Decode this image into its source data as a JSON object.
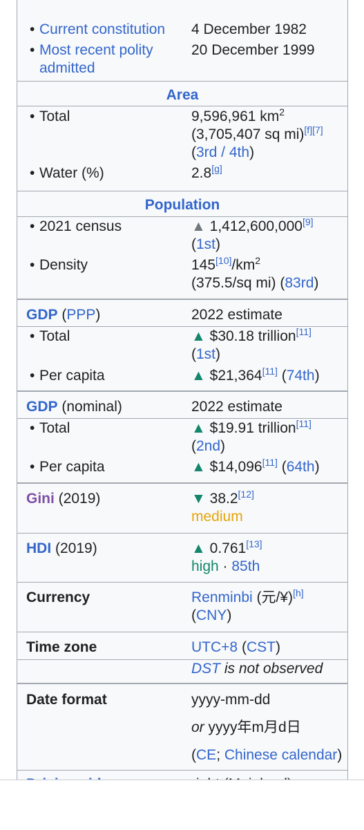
{
  "top": {
    "cut_label": "Current constitution",
    "cut_value": "4 December 1982",
    "polity_label": "Most recent polity admitted",
    "polity_value": "20 December 1999"
  },
  "area": {
    "header": "Area",
    "total_label": "Total",
    "total_value": "9,596,961 km",
    "total_sup": "2",
    "total_sqmi": "(3,705,407 sq mi)",
    "total_refs": "[f][7]",
    "rank_open": "(",
    "rank": "3rd / 4th",
    "rank_close": ")",
    "water_label": "Water (%)",
    "water_value": "2.8",
    "water_ref": "[g]"
  },
  "population": {
    "header": "Population",
    "census_label": "2021 census",
    "census_value": "1,412,600,000",
    "census_ref": "[9]",
    "census_rank_open": "(",
    "census_rank": "1st",
    "census_rank_close": ")",
    "density_label": "Density",
    "density_value": "145",
    "density_ref": "[10]",
    "density_unit": "/km",
    "density_sup": "2",
    "density_sqmi": "(375.5/sq mi) (",
    "density_rank": "83rd",
    "density_close": ")"
  },
  "gdp_ppp": {
    "label_gdp": "GDP",
    "label_open": " (",
    "label_ppp": "PPP",
    "label_close": ")",
    "estimate": "2022 estimate",
    "total_label": "Total",
    "total_value": "$30.18 trillion",
    "total_ref": "[11]",
    "total_rank_open": "(",
    "total_rank": "1st",
    "total_rank_close": ")",
    "pc_label": "Per capita",
    "pc_value": "$21,364",
    "pc_ref": "[11]",
    "pc_open": " (",
    "pc_rank": "74th",
    "pc_close": ")"
  },
  "gdp_nominal": {
    "label_gdp": "GDP",
    "label_rest": " (nominal)",
    "estimate": "2022 estimate",
    "total_label": "Total",
    "total_value": "$19.91 trillion",
    "total_ref": "[11]",
    "total_rank_open": "(",
    "total_rank": "2nd",
    "total_rank_close": ")",
    "pc_label": "Per capita",
    "pc_value": "$14,096",
    "pc_ref": "[11]",
    "pc_open": " (",
    "pc_rank": "64th",
    "pc_close": ")"
  },
  "gini": {
    "label": "Gini",
    "year": " (2019)",
    "value": "38.2",
    "ref": "[12]",
    "rating": "medium"
  },
  "hdi": {
    "label": "HDI",
    "year": " (2019)",
    "value": "0.761",
    "ref": "[13]",
    "rating": "high",
    "dot": " · ",
    "rank": "85th"
  },
  "currency": {
    "label": "Currency",
    "name": "Renminbi",
    "symbol": " (元/¥)",
    "ref": "[h]",
    "code_open": "(",
    "code": "CNY",
    "code_close": ")"
  },
  "timezone": {
    "label": "Time zone",
    "utc": "UTC+8",
    "open": " (",
    "cst": "CST",
    "close": ")",
    "dst": "DST",
    "dst_rest": " is not observed"
  },
  "date_format": {
    "label": "Date format",
    "line1": "yyyy-mm-dd",
    "or": "or",
    "line2": " yyyy年m月d日",
    "open": "(",
    "ce": "CE",
    "semi": "; ",
    "cal": "Chinese calendar",
    "close": ")"
  },
  "next": {
    "label": "Driving side",
    "value": "right (Mainland)"
  },
  "glyphs": {
    "up": "▲",
    "down": "▼",
    "bullet": "•"
  },
  "colors": {
    "link": "#3366cc",
    "up": "#14866d",
    "gini": "#7d4fa6",
    "medium": "#e5a50a",
    "border": "#a2a9b1"
  }
}
